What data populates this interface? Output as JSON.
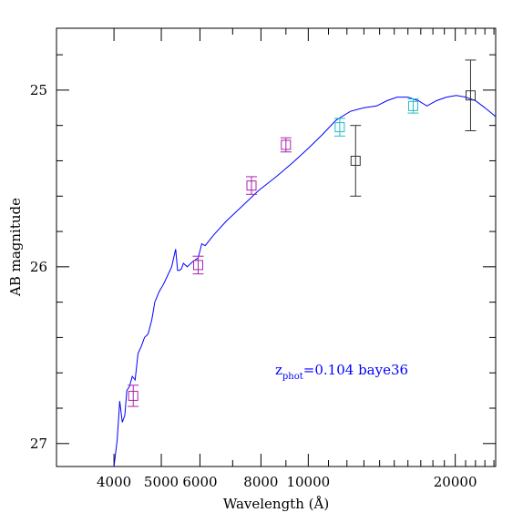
{
  "chart_data": {
    "type": "scatter",
    "title": "",
    "xlabel": "Wavelength (Å)",
    "ylabel": "AB magnitude",
    "xscale": "log",
    "xlim": [
      3050,
      24200
    ],
    "ylim": [
      27.13,
      24.65
    ],
    "y_inverted": true,
    "xticks_major": [
      4000,
      5000,
      6000,
      8000,
      10000,
      20000
    ],
    "xtick_labels": [
      "4000",
      "5000",
      "6000",
      "8000",
      "10000",
      "20000"
    ],
    "yticks_major": [
      25,
      26,
      27
    ],
    "ytick_labels": [
      "25",
      "26",
      "27"
    ],
    "grid": false,
    "annotation": {
      "text_main": "z",
      "text_sub": "phot",
      "text_rest": "=0.104  baye36",
      "color": "#0000ff"
    },
    "series": [
      {
        "kind": "model-sed",
        "color": "#0000ff",
        "x": [
          4000,
          4060,
          4110,
          4160,
          4210,
          4250,
          4300,
          4360,
          4420,
          4480,
          4550,
          4620,
          4700,
          4780,
          4850,
          4950,
          5050,
          5150,
          5250,
          5350,
          5400,
          5450,
          5500,
          5550,
          5650,
          5800,
          5950,
          6050,
          6150,
          6400,
          6800,
          7300,
          7900,
          8600,
          9300,
          10000,
          10700,
          11400,
          12200,
          13000,
          13800,
          14500,
          15200,
          16000,
          16800,
          17500,
          18300,
          19200,
          20100,
          21000,
          22000,
          23000,
          24200
        ],
        "y": [
          27.15,
          26.98,
          26.76,
          26.88,
          26.84,
          26.7,
          26.68,
          26.62,
          26.64,
          26.49,
          26.45,
          26.4,
          26.38,
          26.3,
          26.2,
          26.14,
          26.1,
          26.05,
          26.0,
          25.9,
          26.02,
          26.02,
          26.01,
          25.98,
          26.0,
          25.97,
          25.95,
          25.87,
          25.88,
          25.82,
          25.74,
          25.66,
          25.57,
          25.49,
          25.41,
          25.33,
          25.25,
          25.17,
          25.12,
          25.1,
          25.09,
          25.06,
          25.04,
          25.04,
          25.06,
          25.09,
          25.06,
          25.04,
          25.03,
          25.04,
          25.06,
          25.1,
          25.15
        ]
      },
      {
        "kind": "photometry",
        "points": [
          {
            "x": 4380,
            "y": 26.73,
            "err": 0.06,
            "color": "#aa22aa"
          },
          {
            "x": 5950,
            "y": 25.99,
            "err": 0.05,
            "color": "#aa22aa"
          },
          {
            "x": 7650,
            "y": 25.54,
            "err": 0.05,
            "color": "#aa22aa"
          },
          {
            "x": 9000,
            "y": 25.31,
            "err": 0.04,
            "color": "#aa22aa"
          },
          {
            "x": 11600,
            "y": 25.21,
            "err": 0.05,
            "color": "#22bbcc"
          },
          {
            "x": 12500,
            "y": 25.4,
            "err": 0.2,
            "color": "#333333"
          },
          {
            "x": 16400,
            "y": 25.09,
            "err": 0.04,
            "color": "#22bbcc"
          },
          {
            "x": 21500,
            "y": 25.03,
            "err": 0.2,
            "color": "#333333"
          }
        ]
      }
    ]
  }
}
